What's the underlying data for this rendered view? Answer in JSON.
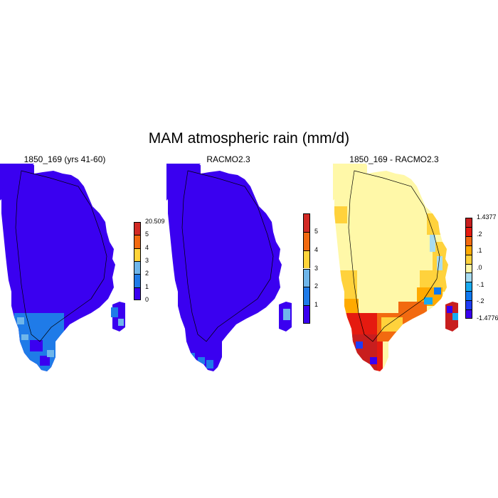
{
  "title": "MAM atmospheric rain (mm/d)",
  "panels": [
    {
      "id": "model",
      "title": "1850_169 (yrs 41-60)",
      "colorbar": {
        "colors": [
          "#3a00f0",
          "#1f7be8",
          "#6fb6ea",
          "#ffd43a",
          "#f26a10",
          "#d22a25"
        ],
        "labels": [
          "0",
          "1",
          "2",
          "3",
          "4",
          "5",
          "20.509"
        ]
      }
    },
    {
      "id": "racmo",
      "title": "RACMO2.3",
      "colorbar": {
        "colors": [
          "#3a00f0",
          "#1f7be8",
          "#6fb6ea",
          "#ffd43a",
          "#f26a10",
          "#d22a25"
        ],
        "labels": [
          "1",
          "2",
          "3",
          "4",
          "5"
        ]
      }
    },
    {
      "id": "diff",
      "title": "1850_169 - RACMO2.3",
      "colorbar": {
        "colors": [
          "#3a00f0",
          "#1e3cf5",
          "#0f78f0",
          "#18aaf0",
          "#a8dcf0",
          "#fff8a8",
          "#ffd23c",
          "#ffaa00",
          "#f26a10",
          "#e51a10",
          "#c81e1e"
        ],
        "labels": [
          "-1.4776",
          "-.2",
          "-.1",
          ".0",
          ".1",
          ".2",
          "1.4377"
        ]
      }
    }
  ]
}
